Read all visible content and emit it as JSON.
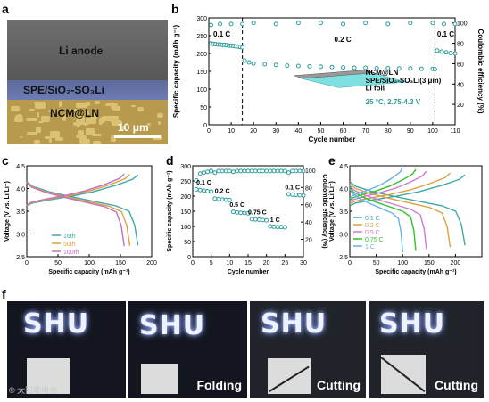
{
  "labels": {
    "a": "a",
    "b": "b",
    "c": "c",
    "d": "d",
    "e": "e",
    "f": "f"
  },
  "panel_a": {
    "layers": [
      "Li anode",
      "SPE/SiO₂-SO₃Li",
      "NCM@LN"
    ],
    "scale_bar": "10 μm",
    "colors": {
      "li": "#666666",
      "spe": "#6675aa",
      "ncm": "#b89a4e"
    }
  },
  "panel_f": {
    "captions": [
      "",
      "Folding",
      "Cutting",
      "Cutting"
    ],
    "led_text": "SHU",
    "watermark": "© 太阳能电池"
  },
  "chart_data": [
    {
      "id": "b",
      "type": "scatter",
      "xlabel": "Cycle number",
      "ylabel": "Specific capacity (mAh g⁻¹)",
      "y2label": "Coulombic efficiency (%)",
      "xlim": [
        0,
        110
      ],
      "ylim": [
        0,
        300
      ],
      "y2lim": [
        0,
        105
      ],
      "xticks": [
        "0",
        "10",
        "20",
        "30",
        "40",
        "50",
        "60",
        "70",
        "80",
        "90",
        "100",
        "110"
      ],
      "yticks": [
        "0",
        "50",
        "100",
        "150",
        "200",
        "250",
        "300"
      ],
      "y2ticks": [
        "20",
        "40",
        "60",
        "80",
        "100"
      ],
      "annotations": [
        "0.1 C",
        "0.2 C",
        "0.1 C"
      ],
      "inset_labels": [
        "NCM@LN",
        "SPE/SiO₂-SO₃Li(3 μm)",
        "Li foil"
      ],
      "condition": "25 °C, 2.75-4.3 V",
      "dividers": [
        15,
        101
      ],
      "series": [
        {
          "axis": "left",
          "points": [
            [
              1,
              228
            ],
            [
              2,
              227
            ],
            [
              3,
              226
            ],
            [
              4,
              225
            ],
            [
              5,
              225
            ],
            [
              6,
              224
            ],
            [
              7,
              224
            ],
            [
              8,
              223
            ],
            [
              9,
              222
            ],
            [
              10,
              222
            ],
            [
              11,
              221
            ],
            [
              12,
              220
            ],
            [
              13,
              219
            ],
            [
              14,
              218
            ],
            [
              15,
              217
            ],
            [
              16,
              180
            ],
            [
              18,
              175
            ],
            [
              20,
              172
            ],
            [
              25,
              170
            ],
            [
              30,
              168
            ],
            [
              35,
              166
            ],
            [
              40,
              165
            ],
            [
              45,
              164
            ],
            [
              50,
              163
            ],
            [
              55,
              162
            ],
            [
              60,
              161
            ],
            [
              65,
              160
            ],
            [
              70,
              160
            ],
            [
              75,
              159
            ],
            [
              80,
              159
            ],
            [
              85,
              158
            ],
            [
              90,
              158
            ],
            [
              95,
              157
            ],
            [
              100,
              157
            ],
            [
              101,
              156
            ],
            [
              102,
              208
            ],
            [
              104,
              205
            ],
            [
              106,
              203
            ],
            [
              108,
              201
            ],
            [
              110,
              200
            ]
          ]
        },
        {
          "axis": "right",
          "points": [
            [
              1,
              98
            ],
            [
              5,
              99
            ],
            [
              10,
              99
            ],
            [
              15,
              99
            ],
            [
              20,
              100
            ],
            [
              30,
              99
            ],
            [
              40,
              100
            ],
            [
              50,
              100
            ],
            [
              60,
              99
            ],
            [
              70,
              100
            ],
            [
              80,
              99
            ],
            [
              90,
              100
            ],
            [
              100,
              100
            ],
            [
              105,
              99
            ],
            [
              110,
              99
            ]
          ]
        }
      ]
    },
    {
      "id": "c",
      "type": "line",
      "xlabel": "Specific capacity (mAh g⁻¹)",
      "ylabel": "Voltage (V vs. Li/Li⁺)",
      "xlim": [
        0,
        200
      ],
      "ylim": [
        2.5,
        4.5
      ],
      "xticks": [
        "0",
        "50",
        "100",
        "150",
        "200"
      ],
      "yticks": [
        "2.5",
        "3.0",
        "3.5",
        "4.0",
        "4.5"
      ],
      "series": [
        {
          "name": "16th",
          "color": "#3fa9a9",
          "cap": 178
        },
        {
          "name": "50th",
          "color": "#e0a040",
          "cap": 165
        },
        {
          "name": "100th",
          "color": "#c070c0",
          "cap": 156
        }
      ]
    },
    {
      "id": "d",
      "type": "scatter",
      "xlabel": "Cycle number",
      "ylabel": "Specific capacity (mAh g⁻¹)",
      "y2label": "Coulombic efficiency (%)",
      "xlim": [
        0,
        30
      ],
      "ylim": [
        0,
        300
      ],
      "y2lim": [
        0,
        105
      ],
      "xticks": [
        "0",
        "5",
        "10",
        "15",
        "20",
        "25",
        "30"
      ],
      "yticks": [
        "0",
        "50",
        "100",
        "150",
        "200",
        "250",
        "300"
      ],
      "y2ticks": [
        "20",
        "40",
        "60",
        "80",
        "100"
      ],
      "annotations": [
        "0.1 C",
        "0.2 C",
        "0.5 C",
        "0.75 C",
        "1 C",
        "0.1 C"
      ],
      "series": [
        {
          "axis": "left",
          "points": [
            [
              1,
              222
            ],
            [
              2,
              220
            ],
            [
              3,
              218
            ],
            [
              4,
              216
            ],
            [
              5,
              215
            ],
            [
              6,
              192
            ],
            [
              7,
              190
            ],
            [
              8,
              189
            ],
            [
              9,
              188
            ],
            [
              10,
              187
            ],
            [
              11,
              148
            ],
            [
              12,
              146
            ],
            [
              13,
              145
            ],
            [
              14,
              144
            ],
            [
              15,
              143
            ],
            [
              16,
              124
            ],
            [
              17,
              123
            ],
            [
              18,
              122
            ],
            [
              19,
              121
            ],
            [
              20,
              120
            ],
            [
              21,
              100
            ],
            [
              22,
              99
            ],
            [
              23,
              98
            ],
            [
              24,
              98
            ],
            [
              25,
              97
            ],
            [
              26,
              206
            ],
            [
              27,
              205
            ],
            [
              28,
              204
            ],
            [
              29,
              203
            ],
            [
              30,
              202
            ]
          ]
        },
        {
          "axis": "right",
          "points": [
            [
              1,
              88
            ],
            [
              2,
              96
            ],
            [
              3,
              97
            ],
            [
              4,
              98
            ],
            [
              5,
              99
            ],
            [
              6,
              97
            ],
            [
              7,
              99
            ],
            [
              8,
              99
            ],
            [
              9,
              99
            ],
            [
              10,
              99
            ],
            [
              11,
              98
            ],
            [
              12,
              99
            ],
            [
              13,
              99
            ],
            [
              14,
              99
            ],
            [
              15,
              99
            ],
            [
              16,
              99
            ],
            [
              17,
              99
            ],
            [
              18,
              99
            ],
            [
              19,
              99
            ],
            [
              20,
              99
            ],
            [
              21,
              99
            ],
            [
              22,
              99
            ],
            [
              23,
              99
            ],
            [
              24,
              99
            ],
            [
              25,
              99
            ],
            [
              26,
              97
            ],
            [
              27,
              99
            ],
            [
              28,
              99
            ],
            [
              29,
              99
            ],
            [
              30,
              99
            ]
          ]
        }
      ]
    },
    {
      "id": "e",
      "type": "line",
      "xlabel": "Specific capacity (mAh g⁻¹)",
      "ylabel": "Voltage (V vs. Li/Li⁺)",
      "xlim": [
        0,
        250
      ],
      "ylim": [
        2.5,
        4.5
      ],
      "xticks": [
        "0",
        "50",
        "100",
        "150",
        "200"
      ],
      "yticks": [
        "2.5",
        "3.0",
        "3.5",
        "4.0",
        "4.5"
      ],
      "series": [
        {
          "name": "0.1 C",
          "color": "#3fa9a9",
          "cap": 218
        },
        {
          "name": "0.2 C",
          "color": "#e0a040",
          "cap": 190
        },
        {
          "name": "0.5 C",
          "color": "#d07ad0",
          "cap": 145
        },
        {
          "name": "0.75 C",
          "color": "#30c030",
          "cap": 125
        },
        {
          "name": "1 C",
          "color": "#6ab0e0",
          "cap": 100
        }
      ]
    }
  ]
}
